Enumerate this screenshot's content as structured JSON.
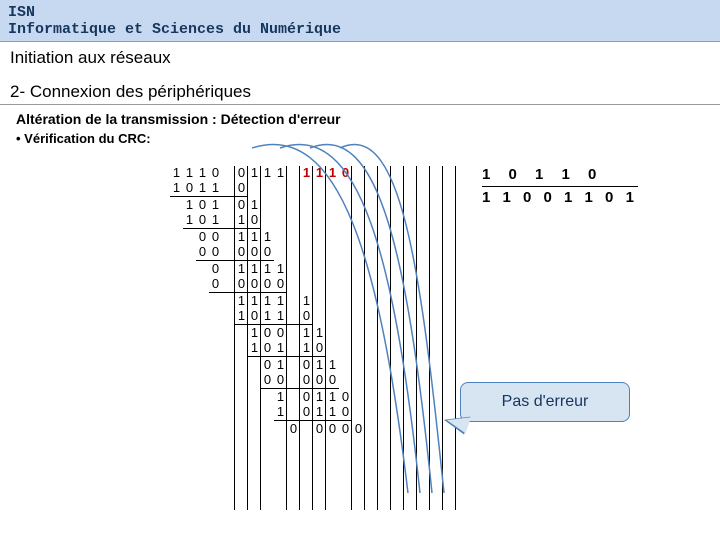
{
  "header": {
    "line1": "ISN",
    "line2": "Informatique et Sciences du Numérique"
  },
  "sub1": "Initiation aux réseaux",
  "sub2": "2- Connexion des périphériques",
  "sub3": "Altération de la transmission : Détection d'erreur",
  "bullet": "• Vérification du CRC:",
  "rhs": {
    "divisor": "1 0 1 1 0",
    "quotient": "1 1 0 0 1 1 0 1"
  },
  "callout": "Pas d'erreur",
  "calc": {
    "colors": {
      "red": "#c00000",
      "black": "#000000"
    },
    "cols": 22,
    "pipe_cols": [
      4,
      5,
      6,
      8,
      9,
      10,
      11,
      13,
      14,
      15,
      16,
      17,
      18,
      19,
      20,
      21
    ],
    "rows": [
      {
        "cells": [
          "1",
          "1",
          "1",
          "0",
          "",
          "0",
          "1",
          "1",
          "1",
          "",
          "1",
          "1",
          "1",
          "0",
          "",
          "",
          "",
          "",
          "",
          "",
          "",
          ""
        ],
        "red_cols": [
          10,
          11,
          12,
          13
        ],
        "underline_to": -1
      },
      {
        "cells": [
          "1",
          "0",
          "1",
          "1",
          "",
          "0",
          "",
          "",
          "",
          "",
          "",
          "",
          "",
          "",
          "",
          "",
          "",
          "",
          "",
          "",
          "",
          ""
        ],
        "underline_from": 0,
        "underline_to": 5
      },
      {
        "cells": [
          "",
          "1",
          "0",
          "1",
          "",
          "0",
          "1",
          "",
          "",
          "",
          "",
          "",
          "",
          "",
          "",
          "",
          "",
          "",
          "",
          "",
          "",
          ""
        ]
      },
      {
        "cells": [
          "",
          "1",
          "0",
          "1",
          "",
          "1",
          "0",
          "",
          "",
          "",
          "",
          "",
          "",
          "",
          "",
          "",
          "",
          "",
          "",
          "",
          "",
          ""
        ],
        "underline_from": 1,
        "underline_to": 6
      },
      {
        "cells": [
          "",
          "",
          "0",
          "0",
          "",
          "1",
          "1",
          "1",
          "",
          "",
          "",
          "",
          "",
          "",
          "",
          "",
          "",
          "",
          "",
          "",
          "",
          ""
        ]
      },
      {
        "cells": [
          "",
          "",
          "0",
          "0",
          "",
          "0",
          "0",
          "0",
          "",
          "",
          "",
          "",
          "",
          "",
          "",
          "",
          "",
          "",
          "",
          "",
          "",
          ""
        ],
        "underline_from": 2,
        "underline_to": 7
      },
      {
        "cells": [
          "",
          "",
          "",
          "0",
          "",
          "1",
          "1",
          "1",
          "1",
          "",
          "",
          "",
          "",
          "",
          "",
          "",
          "",
          "",
          "",
          "",
          "",
          ""
        ]
      },
      {
        "cells": [
          "",
          "",
          "",
          "0",
          "",
          "0",
          "0",
          "0",
          "0",
          "",
          "",
          "",
          "",
          "",
          "",
          "",
          "",
          "",
          "",
          "",
          "",
          ""
        ],
        "underline_from": 3,
        "underline_to": 8
      },
      {
        "cells": [
          "",
          "",
          "",
          "",
          "",
          "1",
          "1",
          "1",
          "1",
          "",
          "1",
          "",
          "",
          "",
          "",
          "",
          "",
          "",
          "",
          "",
          "",
          ""
        ]
      },
      {
        "cells": [
          "",
          "",
          "",
          "",
          "",
          "1",
          "0",
          "1",
          "1",
          "",
          "0",
          "",
          "",
          "",
          "",
          "",
          "",
          "",
          "",
          "",
          "",
          ""
        ],
        "underline_from": 5,
        "underline_to": 10
      },
      {
        "cells": [
          "",
          "",
          "",
          "",
          "",
          "",
          "1",
          "0",
          "0",
          "",
          "1",
          "1",
          "",
          "",
          "",
          "",
          "",
          "",
          "",
          "",
          "",
          ""
        ]
      },
      {
        "cells": [
          "",
          "",
          "",
          "",
          "",
          "",
          "1",
          "0",
          "1",
          "",
          "1",
          "0",
          "",
          "",
          "",
          "",
          "",
          "",
          "",
          "",
          "",
          ""
        ],
        "underline_from": 6,
        "underline_to": 11
      },
      {
        "cells": [
          "",
          "",
          "",
          "",
          "",
          "",
          "",
          "0",
          "1",
          "",
          "0",
          "1",
          "1",
          "",
          "",
          "",
          "",
          "",
          "",
          "",
          "",
          ""
        ]
      },
      {
        "cells": [
          "",
          "",
          "",
          "",
          "",
          "",
          "",
          "0",
          "0",
          "",
          "0",
          "0",
          "0",
          "",
          "",
          "",
          "",
          "",
          "",
          "",
          "",
          ""
        ],
        "underline_from": 7,
        "underline_to": 12
      },
      {
        "cells": [
          "",
          "",
          "",
          "",
          "",
          "",
          "",
          "",
          "1",
          "",
          "0",
          "1",
          "1",
          "0",
          "",
          "",
          "",
          "",
          "",
          "",
          "",
          ""
        ]
      },
      {
        "cells": [
          "",
          "",
          "",
          "",
          "",
          "",
          "",
          "",
          "1",
          "",
          "0",
          "1",
          "1",
          "0",
          "",
          "",
          "",
          "",
          "",
          "",
          "",
          ""
        ],
        "underline_from": 8,
        "underline_to": 13
      },
      {
        "cells": [
          "",
          "",
          "",
          "",
          "",
          "",
          "",
          "",
          "",
          "0",
          "",
          "0",
          "0",
          "0",
          "0",
          "",
          "",
          "",
          "",
          "",
          "",
          ""
        ]
      }
    ]
  }
}
